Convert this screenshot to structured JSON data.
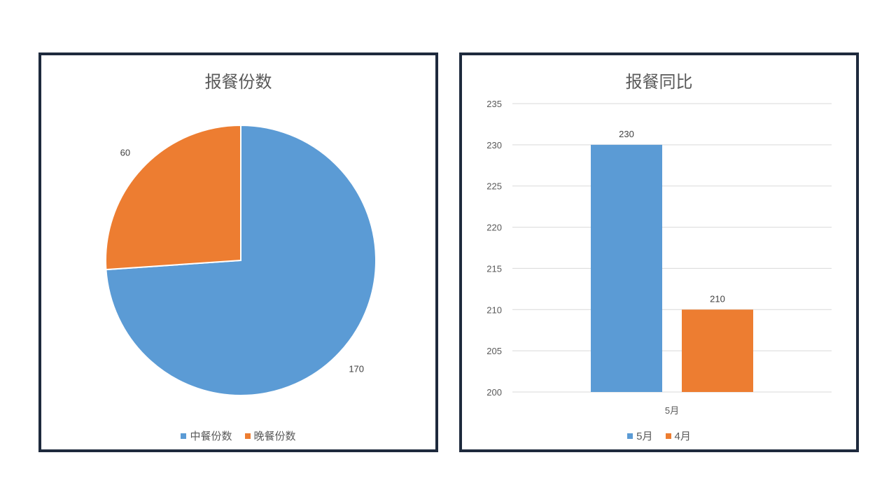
{
  "chart_data": [
    {
      "type": "pie",
      "title": "报餐份数",
      "categories": [
        "中餐份数",
        "晚餐份数"
      ],
      "values": [
        170,
        60
      ],
      "colors": [
        "#5b9bd5",
        "#ed7d31"
      ],
      "data_labels": [
        "170",
        "60"
      ],
      "legend": "bottom"
    },
    {
      "type": "bar",
      "title": "报餐同比",
      "categories": [
        "5月"
      ],
      "series": [
        {
          "name": "5月",
          "values": [
            230
          ],
          "color": "#5b9bd5"
        },
        {
          "name": "4月",
          "values": [
            210
          ],
          "color": "#ed7d31"
        }
      ],
      "data_labels": [
        "230",
        "210"
      ],
      "ylim": [
        200,
        235
      ],
      "yticks": [
        200,
        205,
        210,
        215,
        220,
        225,
        230,
        235
      ],
      "grid": true,
      "legend": "bottom"
    }
  ]
}
